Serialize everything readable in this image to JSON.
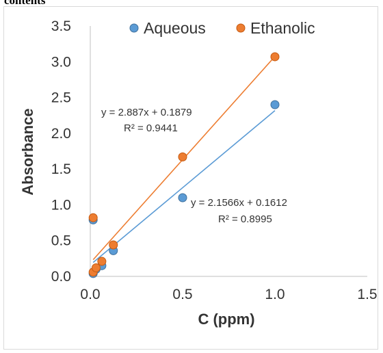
{
  "page": {
    "top_text": "contents"
  },
  "colors": {
    "aqueous": "#5b9bd5",
    "aqueous_edge": "#41719c",
    "ethanolic": "#ed7d31",
    "ethanolic_edge": "#c55a11",
    "axis": "#bfbfbf",
    "text": "#333333"
  },
  "chart_data": {
    "type": "scatter",
    "xlabel": "C (ppm)",
    "ylabel": "Absorbance",
    "xlim": [
      0,
      1.5
    ],
    "ylim": [
      0,
      3.5
    ],
    "x_ticks": [
      "0.0",
      "0.5",
      "1.0",
      "1.5"
    ],
    "y_ticks": [
      "0.0",
      "0.5",
      "1.0",
      "1.5",
      "2.0",
      "2.5",
      "3.0",
      "3.5"
    ],
    "grid": false,
    "legend_position": "top",
    "series": [
      {
        "name": "Aqueous",
        "x": [
          0.0156,
          0.0313,
          0.0625,
          0.125,
          0.5,
          1.0,
          0.0156
        ],
        "y": [
          0.04,
          0.1,
          0.15,
          0.36,
          1.1,
          2.4,
          0.79
        ],
        "trendline": {
          "slope": 2.1566,
          "intercept": 0.1612,
          "equation": "y = 2.1566x + 0.1612",
          "r2": "R² = 0.8995"
        }
      },
      {
        "name": "Ethanolic",
        "x": [
          0.0156,
          0.0313,
          0.0625,
          0.125,
          0.5,
          1.0,
          0.0156
        ],
        "y": [
          0.06,
          0.12,
          0.21,
          0.44,
          1.67,
          3.07,
          0.82
        ],
        "trendline": {
          "slope": 2.887,
          "intercept": 0.1879,
          "equation": "y = 2.887x + 0.1879",
          "r2": "R² = 0.9441"
        }
      }
    ]
  }
}
